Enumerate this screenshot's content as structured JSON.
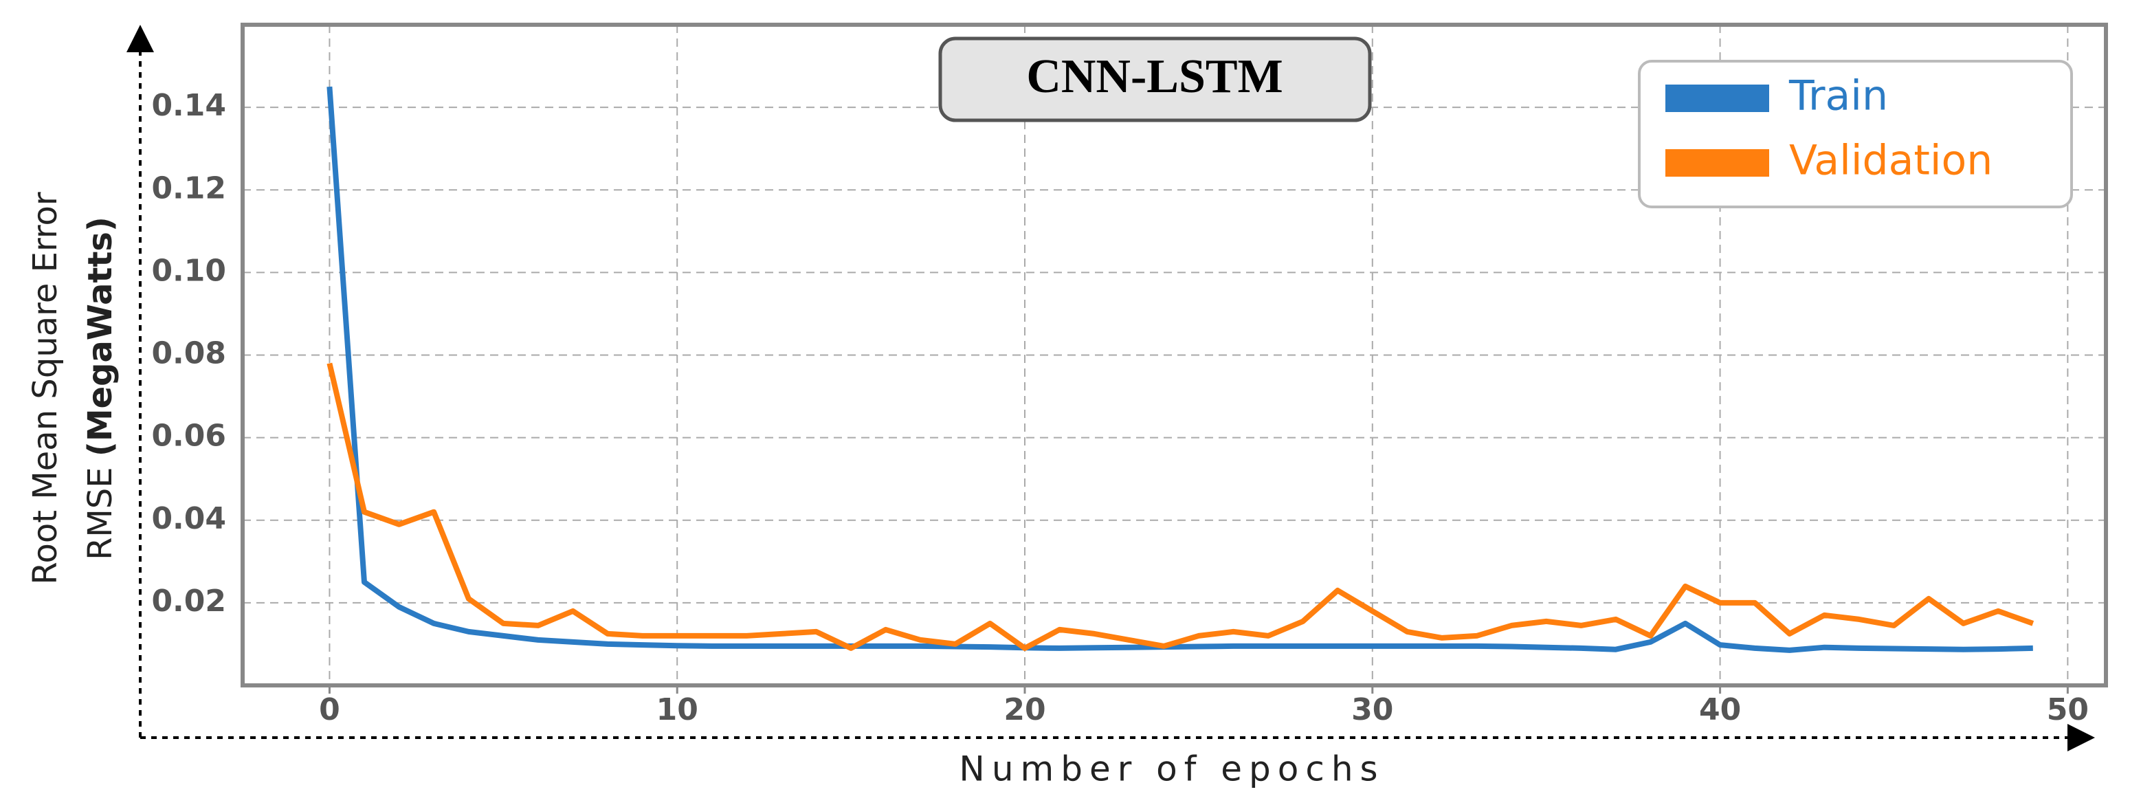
{
  "chart_data": {
    "type": "line",
    "title": "CNN-LSTM",
    "xlabel": "Number of epochs",
    "ylabel": [
      "Root Mean Square Error",
      "RMSE",
      "(MegaWatts)"
    ],
    "x": [
      0,
      1,
      2,
      3,
      4,
      5,
      6,
      7,
      8,
      9,
      10,
      11,
      12,
      13,
      14,
      15,
      16,
      17,
      18,
      19,
      20,
      21,
      22,
      23,
      24,
      25,
      26,
      27,
      28,
      29,
      30,
      31,
      32,
      33,
      34,
      35,
      36,
      37,
      38,
      39,
      40,
      41,
      42,
      43,
      44,
      45,
      46,
      47,
      48,
      49
    ],
    "series": [
      {
        "name": "Train",
        "color": "#2b7bc4",
        "values": [
          0.145,
          0.025,
          0.019,
          0.015,
          0.013,
          0.012,
          0.011,
          0.0105,
          0.01,
          0.0098,
          0.0096,
          0.0095,
          0.0095,
          0.0095,
          0.0095,
          0.0095,
          0.0095,
          0.0095,
          0.0094,
          0.0093,
          0.0091,
          0.009,
          0.0091,
          0.0092,
          0.0093,
          0.0094,
          0.0095,
          0.0095,
          0.0095,
          0.0095,
          0.0095,
          0.0095,
          0.0095,
          0.0095,
          0.0094,
          0.0092,
          0.009,
          0.0087,
          0.0105,
          0.015,
          0.0098,
          0.009,
          0.0085,
          0.0092,
          0.009,
          0.0089,
          0.0088,
          0.0087,
          0.0088,
          0.009
        ]
      },
      {
        "name": "Validation",
        "color": "#ff7f0e",
        "values": [
          0.078,
          0.042,
          0.039,
          0.042,
          0.021,
          0.015,
          0.0145,
          0.018,
          0.0125,
          0.012,
          0.012,
          0.012,
          0.012,
          0.0125,
          0.013,
          0.009,
          0.0135,
          0.011,
          0.01,
          0.015,
          0.009,
          0.0135,
          0.0125,
          0.011,
          0.0095,
          0.012,
          0.013,
          0.012,
          0.0155,
          0.023,
          0.018,
          0.013,
          0.0115,
          0.012,
          0.0145,
          0.0155,
          0.0145,
          0.016,
          0.012,
          0.024,
          0.02,
          0.02,
          0.0125,
          0.017,
          0.016,
          0.0145,
          0.021,
          0.015,
          0.018,
          0.015
        ]
      }
    ],
    "xlim": [
      -2.5,
      51.1
    ],
    "ylim": [
      0,
      0.16
    ],
    "xticks": [
      0,
      10,
      20,
      30,
      40,
      50
    ],
    "yticks": [
      0.02,
      0.04,
      0.06,
      0.08,
      {
        "value": 0.1,
        "label": "0.10"
      },
      0.12,
      0.14
    ],
    "grid": true,
    "legend": "upper right"
  }
}
